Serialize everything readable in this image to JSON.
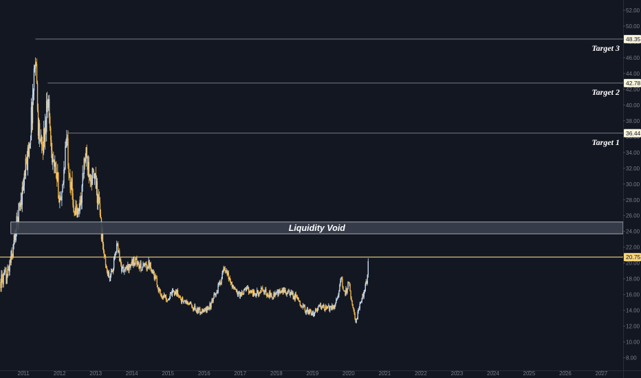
{
  "colors": {
    "background": "#131722",
    "grid": "#1c2030",
    "candle_up": "#c6d9ee",
    "candle_down": "#f1b84a",
    "target_line": "#9a9ca3",
    "current_price_line": "#f7d57c",
    "void_fill": "#3a3f4c",
    "void_border": "#c8cad0",
    "axis_text": "#7a7e88"
  },
  "chart_data": {
    "type": "candlestick",
    "title": "",
    "xlabel": "",
    "ylabel": "",
    "x_ticks": [
      "2011",
      "2012",
      "2013",
      "2014",
      "2015",
      "2016",
      "2017",
      "2018",
      "2019",
      "2020",
      "2021",
      "2022",
      "2023",
      "2024",
      "2025",
      "2026",
      "2027"
    ],
    "y_ticks": [
      8,
      10,
      12,
      14,
      16,
      18,
      20,
      22,
      24,
      26,
      28,
      30,
      32,
      34,
      36,
      38,
      40,
      42,
      44,
      46,
      48,
      50,
      52
    ],
    "y_tick_labels": [
      "8.00",
      "10.00",
      "12.00",
      "14.00",
      "16.00",
      "18.00",
      "20.00",
      "22.00",
      "24.00",
      "26.00",
      "28.00",
      "30.00",
      "32.00",
      "34.00",
      "36.00",
      "38.00",
      "40.00",
      "42.00",
      "44.00",
      "46.00",
      "48.00",
      "50.00",
      "52.00"
    ],
    "xlim": [
      2010.35,
      2027.6
    ],
    "ylim": [
      6.4,
      53.3
    ],
    "grid": false,
    "price_path": [
      [
        2010.35,
        17.6
      ],
      [
        2010.55,
        18.4
      ],
      [
        2010.7,
        21.5
      ],
      [
        2010.8,
        24.5
      ],
      [
        2010.9,
        27.5
      ],
      [
        2011.0,
        30.0
      ],
      [
        2011.1,
        33.0
      ],
      [
        2011.2,
        37.0
      ],
      [
        2011.3,
        44.0
      ],
      [
        2011.33,
        47.5
      ],
      [
        2011.4,
        38.0
      ],
      [
        2011.5,
        34.0
      ],
      [
        2011.6,
        37.0
      ],
      [
        2011.67,
        42.0
      ],
      [
        2011.75,
        36.0
      ],
      [
        2011.85,
        32.0
      ],
      [
        2011.95,
        30.0
      ],
      [
        2012.05,
        27.0
      ],
      [
        2012.15,
        34.0
      ],
      [
        2012.2,
        35.5
      ],
      [
        2012.3,
        30.5
      ],
      [
        2012.4,
        27.0
      ],
      [
        2012.5,
        26.0
      ],
      [
        2012.6,
        28.5
      ],
      [
        2012.7,
        33.5
      ],
      [
        2012.8,
        32.5
      ],
      [
        2012.9,
        31.0
      ],
      [
        2013.0,
        30.0
      ],
      [
        2013.1,
        27.0
      ],
      [
        2013.2,
        22.0
      ],
      [
        2013.3,
        19.0
      ],
      [
        2013.4,
        18.0
      ],
      [
        2013.5,
        20.0
      ],
      [
        2013.6,
        22.5
      ],
      [
        2013.7,
        19.5
      ],
      [
        2013.8,
        19.0
      ],
      [
        2013.9,
        19.5
      ],
      [
        2014.1,
        20.5
      ],
      [
        2014.2,
        19.5
      ],
      [
        2014.35,
        19.5
      ],
      [
        2014.5,
        20.0
      ],
      [
        2014.65,
        18.0
      ],
      [
        2014.8,
        16.0
      ],
      [
        2015.0,
        15.5
      ],
      [
        2015.2,
        16.5
      ],
      [
        2015.4,
        15.2
      ],
      [
        2015.6,
        14.8
      ],
      [
        2015.8,
        14.0
      ],
      [
        2016.0,
        13.8
      ],
      [
        2016.2,
        14.8
      ],
      [
        2016.4,
        17.0
      ],
      [
        2016.55,
        19.2
      ],
      [
        2016.7,
        18.0
      ],
      [
        2016.85,
        16.5
      ],
      [
        2017.0,
        16.0
      ],
      [
        2017.2,
        16.8
      ],
      [
        2017.4,
        16.0
      ],
      [
        2017.6,
        16.5
      ],
      [
        2017.8,
        16.0
      ],
      [
        2018.0,
        16.0
      ],
      [
        2018.2,
        16.5
      ],
      [
        2018.4,
        16.0
      ],
      [
        2018.6,
        15.5
      ],
      [
        2018.8,
        14.0
      ],
      [
        2019.0,
        13.5
      ],
      [
        2019.2,
        14.5
      ],
      [
        2019.4,
        14.2
      ],
      [
        2019.6,
        14.5
      ],
      [
        2019.7,
        16.0
      ],
      [
        2019.8,
        17.8
      ],
      [
        2019.9,
        16.0
      ],
      [
        2020.0,
        17.5
      ],
      [
        2020.1,
        15.0
      ],
      [
        2020.2,
        12.5
      ],
      [
        2020.3,
        14.5
      ],
      [
        2020.4,
        16.0
      ],
      [
        2020.5,
        17.5
      ],
      [
        2020.55,
        20.75
      ]
    ],
    "annotations": [
      {
        "label": "Target 3",
        "price": 48.35,
        "price_label": "48.35",
        "x_start": 2011.33
      },
      {
        "label": "Target 2",
        "price": 42.78,
        "price_label": "42.78",
        "x_start": 2011.67
      },
      {
        "label": "Target 1",
        "price": 36.44,
        "price_label": "36.44",
        "x_start": 2012.2
      }
    ],
    "current_price": {
      "value": 20.75,
      "label": "20.75"
    },
    "zone": {
      "label": "Liquidity Void",
      "low": 23.7,
      "high": 25.2,
      "x_start": 2010.65
    }
  }
}
